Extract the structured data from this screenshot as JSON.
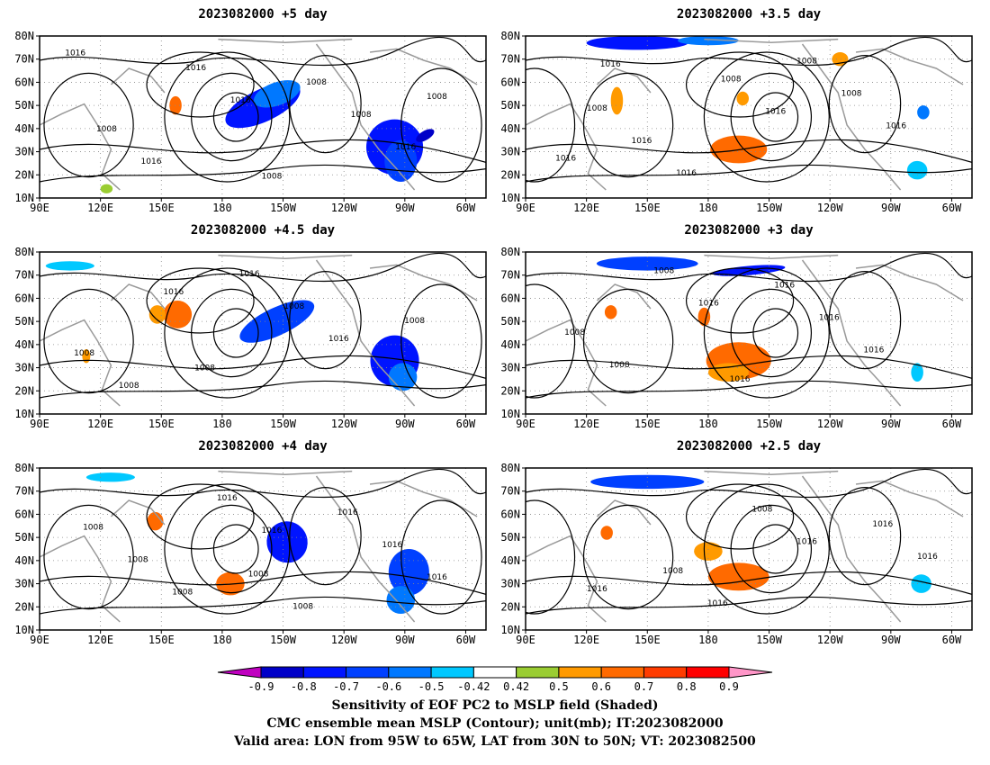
{
  "lat_ticks": [
    "80N",
    "70N",
    "60N",
    "50N",
    "40N",
    "30N",
    "20N",
    "10N"
  ],
  "lon_ticks": [
    "90E",
    "120E",
    "150E",
    "180",
    "150W",
    "120W",
    "90W",
    "60W"
  ],
  "panels": [
    {
      "title": "2023082000 +5 day",
      "contour_labels": [
        "1016",
        "1016",
        "1016",
        "1016",
        "1008",
        "1016",
        "1008",
        "1008",
        "1008",
        "1008"
      ],
      "blobs": [
        {
          "lon": 200,
          "lat": 50,
          "rx": 20,
          "ry": 7,
          "value": -0.75,
          "tilt": -25
        },
        {
          "lon": 207,
          "lat": 55,
          "rx": 12,
          "ry": 5,
          "value": -0.6,
          "tilt": -20
        },
        {
          "lon": 265,
          "lat": 32,
          "rx": 14,
          "ry": 12,
          "value": -0.8,
          "tilt": 0
        },
        {
          "lon": 268,
          "lat": 26,
          "rx": 8,
          "ry": 9,
          "value": -0.65,
          "tilt": 0
        },
        {
          "lon": 280,
          "lat": 37,
          "rx": 5,
          "ry": 2,
          "value": -0.9,
          "tilt": -30
        },
        {
          "lon": 157,
          "lat": 50,
          "rx": 3,
          "ry": 4,
          "value": 0.65,
          "tilt": 0
        },
        {
          "lon": 123,
          "lat": 14,
          "rx": 3,
          "ry": 2,
          "value": 0.45,
          "tilt": 0
        }
      ]
    },
    {
      "title": "2023082000 +3.5 day",
      "contour_labels": [
        "1016",
        "1016",
        "1016",
        "1008",
        "1016",
        "1016",
        "1008",
        "1016",
        "1008",
        "1008"
      ],
      "blobs": [
        {
          "lon": 145,
          "lat": 77,
          "rx": 25,
          "ry": 3,
          "value": -0.75,
          "tilt": 0
        },
        {
          "lon": 180,
          "lat": 78,
          "rx": 15,
          "ry": 2,
          "value": -0.55,
          "tilt": 0
        },
        {
          "lon": 195,
          "lat": 31,
          "rx": 14,
          "ry": 6,
          "value": 0.6,
          "tilt": 0
        },
        {
          "lon": 135,
          "lat": 52,
          "rx": 3,
          "ry": 6,
          "value": 0.55,
          "tilt": 0
        },
        {
          "lon": 197,
          "lat": 53,
          "rx": 3,
          "ry": 3,
          "value": 0.5,
          "tilt": 0
        },
        {
          "lon": 283,
          "lat": 22,
          "rx": 5,
          "ry": 4,
          "value": -0.5,
          "tilt": 0
        },
        {
          "lon": 286,
          "lat": 47,
          "rx": 3,
          "ry": 3,
          "value": -0.55,
          "tilt": 0
        },
        {
          "lon": 245,
          "lat": 70,
          "rx": 4,
          "ry": 3,
          "value": 0.5,
          "tilt": 0
        }
      ]
    },
    {
      "title": "2023082000 +4.5 day",
      "contour_labels": [
        "1016",
        "1016",
        "1008",
        "1008",
        "1008",
        "1016",
        "1008",
        "1008"
      ],
      "blobs": [
        {
          "lon": 207,
          "lat": 50,
          "rx": 20,
          "ry": 6,
          "value": -0.7,
          "tilt": -25
        },
        {
          "lon": 265,
          "lat": 33,
          "rx": 12,
          "ry": 11,
          "value": -0.75,
          "tilt": 0
        },
        {
          "lon": 269,
          "lat": 26,
          "rx": 7,
          "ry": 6,
          "value": -0.6,
          "tilt": 0
        },
        {
          "lon": 158,
          "lat": 53,
          "rx": 7,
          "ry": 6,
          "value": 0.62,
          "tilt": 0
        },
        {
          "lon": 148,
          "lat": 53,
          "rx": 4,
          "ry": 4,
          "value": 0.5,
          "tilt": 0
        },
        {
          "lon": 113,
          "lat": 35,
          "rx": 2,
          "ry": 3,
          "value": 0.55,
          "tilt": 0
        },
        {
          "lon": 105,
          "lat": 74,
          "rx": 12,
          "ry": 2,
          "value": -0.5,
          "tilt": 0
        }
      ]
    },
    {
      "title": "2023082000 +3 day",
      "contour_labels": [
        "1016",
        "1016",
        "1008",
        "1016",
        "1008",
        "1016",
        "1008",
        "1016"
      ],
      "blobs": [
        {
          "lon": 195,
          "lat": 33,
          "rx": 16,
          "ry": 8,
          "value": 0.6,
          "tilt": 0
        },
        {
          "lon": 190,
          "lat": 28,
          "rx": 10,
          "ry": 4,
          "value": 0.55,
          "tilt": 0
        },
        {
          "lon": 150,
          "lat": 75,
          "rx": 25,
          "ry": 3,
          "value": -0.7,
          "tilt": 0
        },
        {
          "lon": 200,
          "lat": 72,
          "rx": 18,
          "ry": 2,
          "value": -0.75,
          "tilt": -5
        },
        {
          "lon": 132,
          "lat": 54,
          "rx": 3,
          "ry": 3,
          "value": 0.6,
          "tilt": 0
        },
        {
          "lon": 178,
          "lat": 52,
          "rx": 3,
          "ry": 4,
          "value": 0.6,
          "tilt": 0
        },
        {
          "lon": 283,
          "lat": 28,
          "rx": 3,
          "ry": 4,
          "value": -0.5,
          "tilt": 0
        }
      ]
    },
    {
      "title": "2023082000 +4 day",
      "contour_labels": [
        "1016",
        "1016",
        "1016",
        "1016",
        "1008",
        "1016",
        "1008",
        "1008",
        "1008",
        "1008"
      ],
      "blobs": [
        {
          "lon": 212,
          "lat": 48,
          "rx": 10,
          "ry": 9,
          "value": -0.75,
          "tilt": -30
        },
        {
          "lon": 272,
          "lat": 35,
          "rx": 10,
          "ry": 10,
          "value": -0.7,
          "tilt": 0
        },
        {
          "lon": 268,
          "lat": 23,
          "rx": 7,
          "ry": 6,
          "value": -0.55,
          "tilt": 0
        },
        {
          "lon": 184,
          "lat": 30,
          "rx": 7,
          "ry": 5,
          "value": 0.65,
          "tilt": 0
        },
        {
          "lon": 147,
          "lat": 57,
          "rx": 4,
          "ry": 4,
          "value": 0.6,
          "tilt": 0
        },
        {
          "lon": 125,
          "lat": 76,
          "rx": 12,
          "ry": 2,
          "value": -0.5,
          "tilt": 0
        }
      ]
    },
    {
      "title": "2023082000 +2.5 day",
      "contour_labels": [
        "1016",
        "1016",
        "1008",
        "1016",
        "1016",
        "1016",
        "1008"
      ],
      "blobs": [
        {
          "lon": 150,
          "lat": 74,
          "rx": 28,
          "ry": 3,
          "value": -0.7,
          "tilt": 0
        },
        {
          "lon": 195,
          "lat": 33,
          "rx": 15,
          "ry": 6,
          "value": 0.6,
          "tilt": 0
        },
        {
          "lon": 180,
          "lat": 44,
          "rx": 7,
          "ry": 4,
          "value": 0.55,
          "tilt": 0
        },
        {
          "lon": 130,
          "lat": 52,
          "rx": 3,
          "ry": 3,
          "value": 0.6,
          "tilt": 0
        },
        {
          "lon": 285,
          "lat": 30,
          "rx": 5,
          "ry": 4,
          "value": -0.5,
          "tilt": 0
        }
      ]
    }
  ],
  "colorbar": {
    "levels": [
      "-0.9",
      "-0.8",
      "-0.7",
      "-0.6",
      "-0.5",
      "-0.42",
      "0.42",
      "0.5",
      "0.6",
      "0.7",
      "0.8",
      "0.9"
    ],
    "colors": [
      "#c000c0",
      "#0000c8",
      "#0014ff",
      "#0040ff",
      "#0078ff",
      "#00c8ff",
      "#ffffff",
      "#9acd32",
      "#ff9a00",
      "#ff6a00",
      "#ff3c00",
      "#ff0000",
      "#ff96c8"
    ]
  },
  "caption": {
    "line1": "Sensitivity of EOF PC2 to MSLP field (Shaded)",
    "line2": "CMC ensemble mean MSLP (Contour); unit(mb); IT:2023082000",
    "line3": "Valid area: LON from 95W to 65W, LAT from 30N to 50N; VT: 2023082500"
  }
}
